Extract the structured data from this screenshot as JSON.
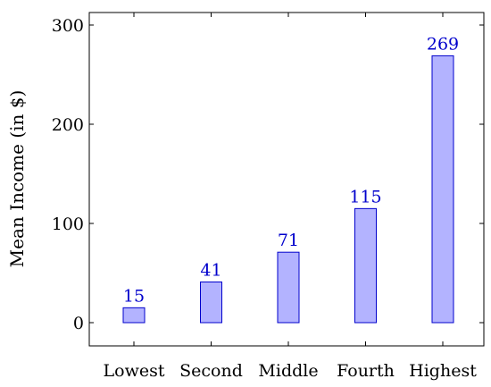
{
  "chart_data": {
    "type": "bar",
    "categories": [
      "Lowest",
      "Second",
      "Middle",
      "Fourth",
      "Highest"
    ],
    "values": [
      15,
      41,
      71,
      115,
      269
    ],
    "data_labels": [
      "15",
      "41",
      "71",
      "115",
      "269"
    ],
    "title": "",
    "xlabel": "",
    "ylabel": "Mean Income (in $)",
    "ylim": [
      -25,
      310
    ],
    "yticks": [
      0,
      100,
      200,
      300
    ],
    "ytick_labels": [
      "0",
      "100",
      "200",
      "300"
    ],
    "grid": false,
    "bar_fill": "#b3b3ff",
    "bar_stroke": "#0000cc",
    "label_color": "#0000cc"
  }
}
